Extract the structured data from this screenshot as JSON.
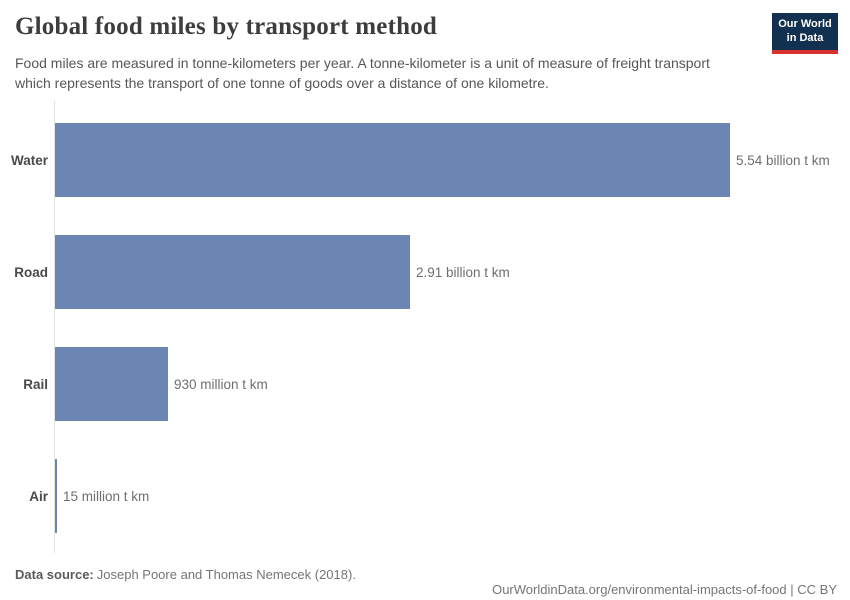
{
  "header": {
    "title": "Global food miles by transport method",
    "subtitle": "Food miles are measured in tonne-kilometers per year. A tonne-kilometer is a unit of measure of freight transport which represents the transport of one tonne of goods over a distance of one kilometre.",
    "logo": {
      "line1": "Our World",
      "line2": "in Data",
      "bg_color": "#12304f",
      "accent_color": "#d8302f"
    }
  },
  "chart_data": {
    "type": "bar",
    "orientation": "horizontal",
    "title": "Global food miles by transport method",
    "unit": "tonne-kilometers per year",
    "categories": [
      "Water",
      "Road",
      "Rail",
      "Air"
    ],
    "values_billion_tkm": [
      5.54,
      2.91,
      0.93,
      0.015
    ],
    "value_labels": [
      "5.54 billion t km",
      "2.91 billion t km",
      "930 million t km",
      "15 million t km"
    ],
    "xlim": [
      0,
      5.54
    ],
    "bar_color": "#6b86b3",
    "axis_line_color": "#e2e2e2",
    "grid": false,
    "legend": "none"
  },
  "footer": {
    "source_label": "Data source:",
    "source_text": "Joseph Poore and Thomas Nemecek (2018).",
    "url": "OurWorldinData.org/environmental-impacts-of-food",
    "separator": " | ",
    "license": "CC BY"
  }
}
